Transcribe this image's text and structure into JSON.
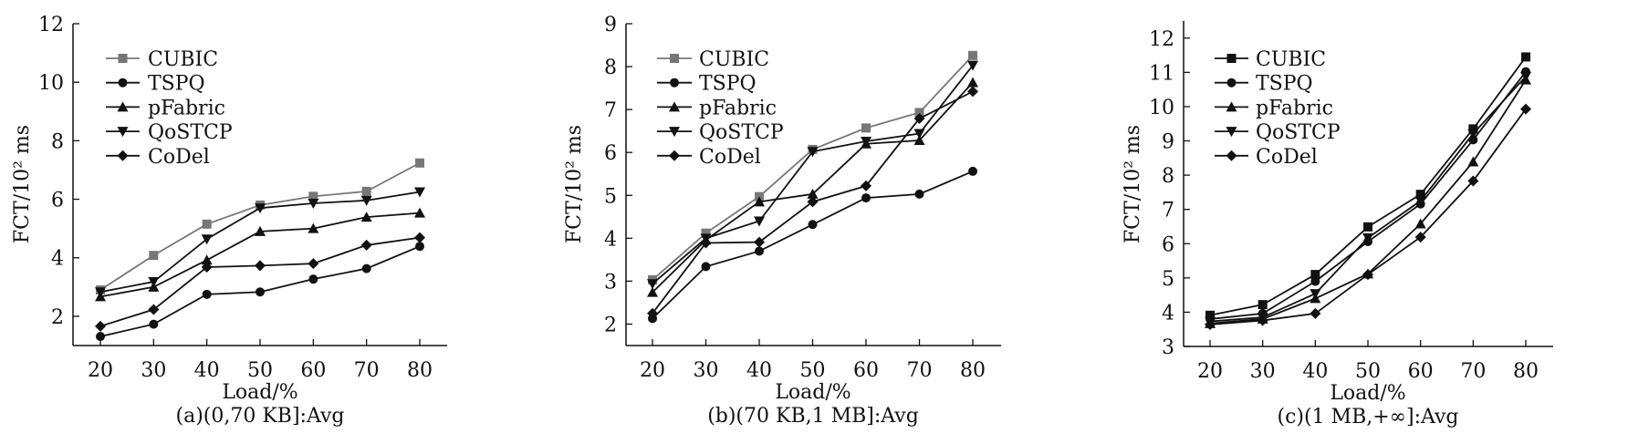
{
  "chart_data": [
    {
      "type": "line",
      "caption": "(a)(0,70 KB]:Avg",
      "xlabel": "Load/%",
      "ylabel": "FCT/10² ms",
      "x": [
        20,
        30,
        40,
        50,
        60,
        70,
        80
      ],
      "ylim": [
        1,
        12
      ],
      "yticks": [
        2,
        4,
        6,
        8,
        10,
        12
      ],
      "legend_position": "top-left",
      "grid": false,
      "series": [
        {
          "name": "CUBIC",
          "marker": "square",
          "color": "#777777",
          "values": [
            2.9,
            4.08,
            5.15,
            5.8,
            6.1,
            6.27,
            7.24
          ]
        },
        {
          "name": "TSPQ",
          "marker": "circle",
          "color": "#111111",
          "values": [
            1.31,
            1.73,
            2.75,
            2.83,
            3.27,
            3.63,
            4.39
          ]
        },
        {
          "name": "pFabric",
          "marker": "triangle-up",
          "color": "#111111",
          "values": [
            2.67,
            3.0,
            3.92,
            4.9,
            5.0,
            5.39,
            5.53
          ]
        },
        {
          "name": "QoSTCP",
          "marker": "triangle-down",
          "color": "#111111",
          "values": [
            2.83,
            3.18,
            4.64,
            5.7,
            5.86,
            5.96,
            6.25
          ]
        },
        {
          "name": "CoDel",
          "marker": "diamond",
          "color": "#111111",
          "values": [
            1.66,
            2.23,
            3.68,
            3.73,
            3.8,
            4.43,
            4.69
          ]
        }
      ]
    },
    {
      "type": "line",
      "caption": "(b)(70 KB,1 MB]:Avg",
      "xlabel": "Load/%",
      "ylabel": "FCT/10² ms",
      "x": [
        20,
        30,
        40,
        50,
        60,
        70,
        80
      ],
      "ylim": [
        1.5,
        9
      ],
      "yticks": [
        2,
        3,
        4,
        5,
        6,
        7,
        8,
        9
      ],
      "legend_position": "top-left",
      "grid": false,
      "series": [
        {
          "name": "CUBIC",
          "marker": "square",
          "color": "#777777",
          "values": [
            3.03,
            4.12,
            4.97,
            6.07,
            6.57,
            6.93,
            8.26
          ]
        },
        {
          "name": "TSPQ",
          "marker": "circle",
          "color": "#111111",
          "values": [
            2.13,
            3.34,
            3.7,
            4.32,
            4.94,
            5.03,
            5.56
          ]
        },
        {
          "name": "pFabric",
          "marker": "triangle-up",
          "color": "#111111",
          "values": [
            2.74,
            3.96,
            4.85,
            5.03,
            6.2,
            6.28,
            7.63
          ]
        },
        {
          "name": "QoSTCP",
          "marker": "triangle-down",
          "color": "#111111",
          "values": [
            2.94,
            4.0,
            4.4,
            6.02,
            6.26,
            6.44,
            8.03
          ]
        },
        {
          "name": "CoDel",
          "marker": "diamond",
          "color": "#111111",
          "values": [
            2.25,
            3.89,
            3.91,
            4.85,
            5.22,
            6.79,
            7.42
          ]
        }
      ]
    },
    {
      "type": "line",
      "caption": "(c)(1 MB,+∞]:Avg",
      "xlabel": "Load/%",
      "ylabel": "FCT/10² ms",
      "x": [
        20,
        30,
        40,
        50,
        60,
        70,
        80
      ],
      "ylim": [
        3,
        12.5
      ],
      "yticks": [
        3,
        4,
        5,
        6,
        7,
        8,
        9,
        10,
        11,
        12
      ],
      "legend_position": "top-left",
      "grid": false,
      "series": [
        {
          "name": "CUBIC",
          "marker": "square",
          "color": "#111111",
          "values": [
            3.91,
            4.22,
            5.1,
            6.49,
            7.44,
            9.35,
            11.45
          ]
        },
        {
          "name": "TSPQ",
          "marker": "circle",
          "color": "#111111",
          "values": [
            3.8,
            3.96,
            4.9,
            6.06,
            7.16,
            9.03,
            11.02
          ]
        },
        {
          "name": "pFabric",
          "marker": "triangle-up",
          "color": "#111111",
          "values": [
            3.67,
            3.8,
            4.4,
            5.12,
            6.58,
            8.39,
            10.78
          ]
        },
        {
          "name": "QoSTCP",
          "marker": "triangle-down",
          "color": "#111111",
          "values": [
            3.73,
            3.85,
            4.54,
            6.17,
            7.25,
            9.21,
            10.88
          ]
        },
        {
          "name": "CoDel",
          "marker": "diamond",
          "color": "#111111",
          "values": [
            3.64,
            3.76,
            3.96,
            5.1,
            6.19,
            7.83,
            9.93
          ]
        }
      ]
    }
  ]
}
